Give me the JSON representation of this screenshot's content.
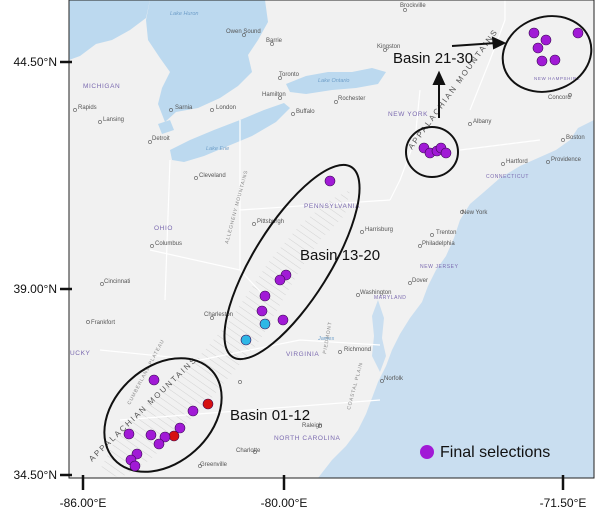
{
  "axes": {
    "lat_ticks": [
      "44.50°N",
      "39.00°N",
      "34.50°N"
    ],
    "lon_ticks": [
      "-86.00°E",
      "-80.00°E",
      "-71.50°E"
    ]
  },
  "annotations": {
    "basin_a": "Basin 01-12",
    "basin_b": "Basin 13-20",
    "basin_c": "Basin 21-30",
    "mountains": "APPALACHIAN MOUNTAINS"
  },
  "legend": {
    "label": "Final selections",
    "marker_color": "#a11ad6"
  },
  "colors": {
    "site_purple": "#a11ad6",
    "site_cyan": "#2fb7e6",
    "site_red": "#d61010",
    "lake": "#bcd9ef",
    "ocean": "#c9def0",
    "land": "#f0f0f0"
  },
  "cities": [
    "Brockville",
    "Owen Sound",
    "Barrie",
    "Kingston",
    "Toronto",
    "Hamilton",
    "Buffalo",
    "Rochester",
    "Concord",
    "London",
    "Sarnia",
    "Detroit",
    "Lansing",
    "Rapids",
    "Boston",
    "Albany",
    "Hartford",
    "Providence",
    "Cleveland",
    "Pittsburgh",
    "Harrisburg",
    "New York",
    "Trenton",
    "Philadelphia",
    "Columbus",
    "Washington",
    "Dover",
    "Cincinnati",
    "Frankfort",
    "Charleston",
    "Richmond",
    "Norfolk",
    "Roanoke",
    "Raleigh",
    "Charlotte",
    "Greenville"
  ],
  "states": [
    "MICHIGAN",
    "NEW YORK",
    "NEW HAMPSHIRE",
    "CONNECTICUT",
    "PENNSYLVANIA",
    "OHIO",
    "NEW JERSEY",
    "MARYLAND",
    "VIRGINIA",
    "NORTH CAROLINA",
    "UCKY"
  ],
  "regions": [
    "CUMBERLAND PLATEAU",
    "PIEDMONT",
    "COASTAL PLAIN",
    "ALLEGHENY MOUNTAINS"
  ],
  "water": [
    "Lake Huron",
    "Lake Ontario",
    "Lake Erie",
    "James"
  ]
}
